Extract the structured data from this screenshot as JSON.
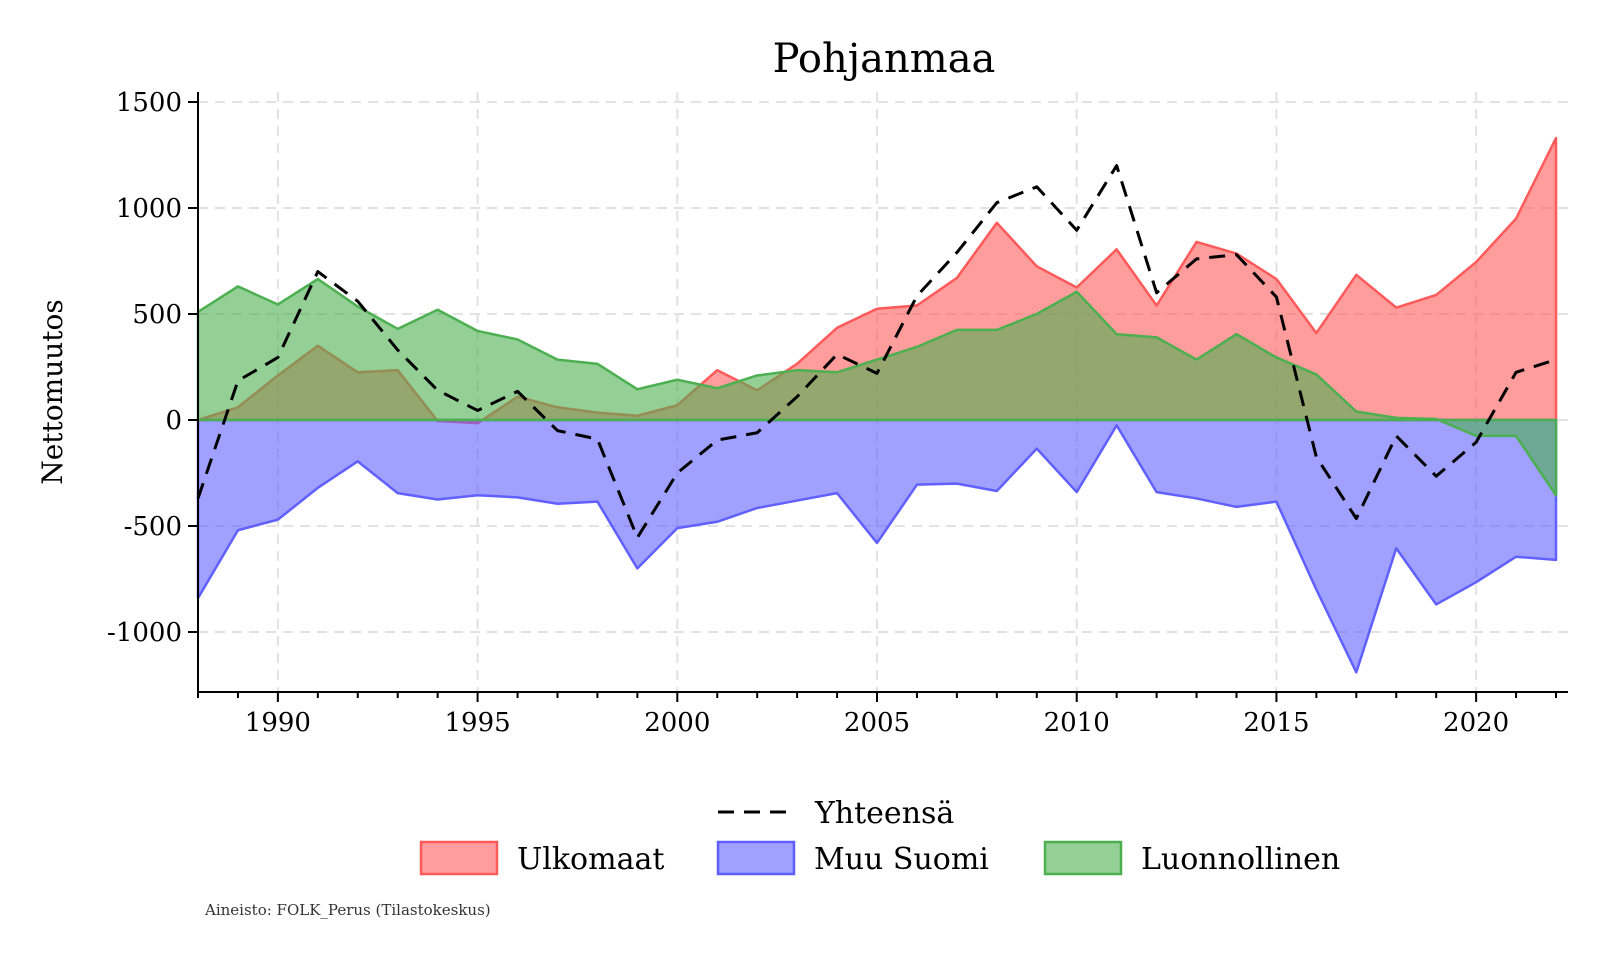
{
  "chart_data": {
    "type": "area",
    "title": "Pohjanmaa",
    "xlabel": "",
    "ylabel": "Nettomuutos",
    "xlim": [
      1988,
      2022
    ],
    "ylim": [
      -1300,
      1500
    ],
    "xticks": [
      1990,
      1995,
      2000,
      2005,
      2010,
      2015,
      2020
    ],
    "xtick_labels": [
      "1990",
      "1995",
      "2000",
      "2005",
      "2010",
      "2015",
      "2020"
    ],
    "yticks": [
      1500,
      1000,
      500,
      0,
      -500,
      -1000
    ],
    "ytick_labels": [
      "1500",
      "1000",
      "500",
      "0",
      "-500",
      "-1000"
    ],
    "grid": true,
    "legend_placement": "bottom-center",
    "x": [
      1988,
      1989,
      1990,
      1991,
      1992,
      1993,
      1994,
      1995,
      1996,
      1997,
      1998,
      1999,
      2000,
      2001,
      2002,
      2003,
      2004,
      2005,
      2006,
      2007,
      2008,
      2009,
      2010,
      2011,
      2012,
      2013,
      2014,
      2015,
      2016,
      2017,
      2018,
      2019,
      2020,
      2021,
      2022
    ],
    "series": [
      {
        "name": "Ulkomaat",
        "kind": "area",
        "color": "#ff5a5a",
        "values": [
          0,
          60,
          210,
          350,
          225,
          235,
          -5,
          -15,
          110,
          60,
          35,
          20,
          70,
          235,
          140,
          265,
          435,
          525,
          540,
          670,
          930,
          725,
          625,
          805,
          540,
          840,
          785,
          665,
          410,
          685,
          530,
          590,
          745,
          950,
          1330
        ]
      },
      {
        "name": "Muu Suomi",
        "kind": "area",
        "color": "#6060ff",
        "values": [
          -840,
          -520,
          -470,
          -320,
          -195,
          -345,
          -375,
          -355,
          -365,
          -395,
          -385,
          -700,
          -510,
          -480,
          -415,
          -380,
          -345,
          -580,
          -305,
          -300,
          -335,
          -135,
          -340,
          -25,
          -340,
          -370,
          -410,
          -385,
          -800,
          -1190,
          -605,
          -870,
          -765,
          -645,
          -660
        ]
      },
      {
        "name": "Luonnollinen",
        "kind": "area",
        "color": "#4caf50",
        "values": [
          510,
          630,
          545,
          665,
          535,
          430,
          520,
          420,
          380,
          285,
          265,
          145,
          190,
          150,
          210,
          235,
          225,
          285,
          345,
          425,
          425,
          500,
          605,
          405,
          390,
          285,
          405,
          295,
          215,
          40,
          10,
          5,
          -75,
          -75,
          -355
        ]
      },
      {
        "name": "Yhteensä",
        "kind": "line",
        "color": "#000000",
        "values": [
          -370,
          185,
          295,
          700,
          560,
          330,
          140,
          45,
          135,
          -50,
          -90,
          -555,
          -250,
          -95,
          -60,
          110,
          310,
          220,
          585,
          790,
          1025,
          1100,
          895,
          1200,
          600,
          760,
          780,
          580,
          -175,
          -465,
          -75,
          -265,
          -105,
          225,
          285
        ]
      }
    ],
    "legend": [
      "Yhteensä",
      "Ulkomaat",
      "Muu Suomi",
      "Luonnollinen"
    ],
    "source_note": "Aineisto: FOLK_Perus (Tilastokeskus)"
  }
}
